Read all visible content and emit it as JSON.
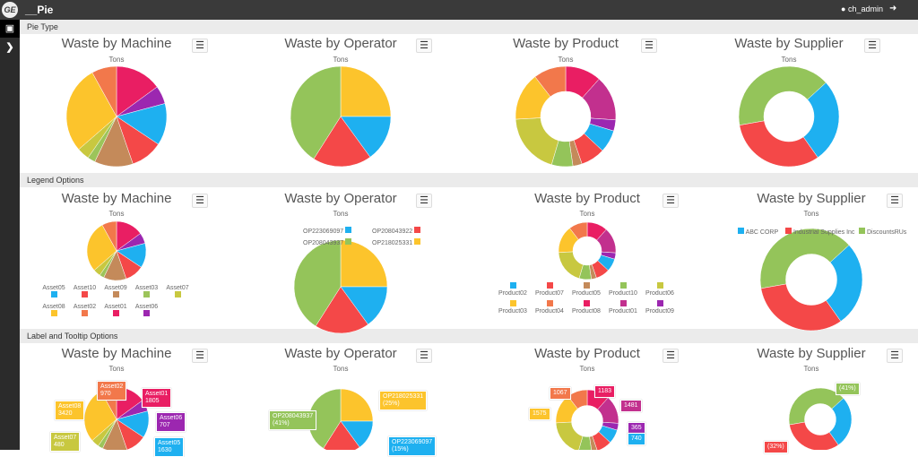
{
  "header": {
    "logo": "GE",
    "app_title": "__Pie",
    "user": "ch_admin"
  },
  "sections": [
    "Pie Type",
    "Legend Options",
    "Label and Tooltip Options"
  ],
  "titles": [
    "Waste by Machine",
    "Waste by Operator",
    "Waste by Product",
    "Waste by Supplier"
  ],
  "subtitle": "Tons",
  "colors": {
    "header": "#3a3a3a",
    "sidebar": "#2b2b2b"
  },
  "machine": [
    {
      "name": "Asset01",
      "value": 1805,
      "color": "#e91e63"
    },
    {
      "name": "Asset06",
      "value": 707,
      "color": "#9c27b0"
    },
    {
      "name": "Asset05",
      "value": 1630,
      "color": "#1eb0f0"
    },
    {
      "name": "Asset10",
      "value": 1250,
      "color": "#f44848"
    },
    {
      "name": "Asset09",
      "value": 1500,
      "color": "#c48a5a"
    },
    {
      "name": "Asset03",
      "value": 300,
      "color": "#9cc45a"
    },
    {
      "name": "Asset07",
      "value": 480,
      "color": "#c8c840"
    },
    {
      "name": "Asset08",
      "value": 3420,
      "color": "#fcc42c"
    },
    {
      "name": "Asset02",
      "value": 970,
      "color": "#f2784b"
    }
  ],
  "machine_legend_order": [
    "Asset05",
    "Asset10",
    "Asset09",
    "Asset03",
    "Asset07",
    "Asset08",
    "Asset02",
    "Asset01",
    "Asset06"
  ],
  "operator": [
    {
      "name": "OP218025331",
      "value": 25,
      "color": "#fcc42c"
    },
    {
      "name": "OP223069097",
      "value": 15,
      "color": "#1eb0f0"
    },
    {
      "name": "OP208043922",
      "value": 19,
      "color": "#f44848"
    },
    {
      "name": "OP208043937",
      "value": 41,
      "color": "#94c45a"
    }
  ],
  "operator_legend_order": [
    "OP223069097",
    "OP208043922",
    "OP208043937",
    "OP218025331"
  ],
  "product": [
    {
      "name": "Product08",
      "value": 1183,
      "color": "#e91e63"
    },
    {
      "name": "Product01",
      "value": 1481,
      "color": "#c2308e"
    },
    {
      "name": "Product09",
      "value": 365,
      "color": "#9c27b0"
    },
    {
      "name": "Product02",
      "value": 740,
      "color": "#1eb0f0"
    },
    {
      "name": "Product07",
      "value": 800,
      "color": "#f44848"
    },
    {
      "name": "Product05",
      "value": 300,
      "color": "#c48a5a"
    },
    {
      "name": "Product10",
      "value": 700,
      "color": "#94c45a"
    },
    {
      "name": "Product06",
      "value": 2000,
      "color": "#c8c840"
    },
    {
      "name": "Product03",
      "value": 1575,
      "color": "#fcc42c"
    },
    {
      "name": "Product04",
      "value": 1067,
      "color": "#f2784b"
    }
  ],
  "product_legend_order": [
    "Product02",
    "Product07",
    "Product05",
    "Product10",
    "Product06",
    "Product03",
    "Product04",
    "Product08",
    "Product01",
    "Product09"
  ],
  "supplier": [
    {
      "name": "DiscountsRUs",
      "value": 41,
      "color": "#94c45a"
    },
    {
      "name": "ABC CORP",
      "value": 27,
      "color": "#1eb0f0"
    },
    {
      "name": "Industrial Supplies Inc",
      "value": 32,
      "color": "#f44848"
    }
  ],
  "supplier_legend_order": [
    "ABC CORP",
    "Industrial Supplies Inc",
    "DiscountsRUs"
  ],
  "labels": {
    "machine": [
      "Asset02\n970",
      "Asset01\n1805",
      "Asset08\n3420",
      "Asset06\n707",
      "Asset07\n480",
      "Asset05\n1630"
    ],
    "operator": [
      "OP218025331\n(25%)",
      "OP208043937\n(41%)",
      "OP223069097\n(15%)"
    ],
    "product": [
      "1067",
      "1183",
      "1575",
      "1481",
      "365",
      "740"
    ],
    "supplier": [
      "(41%)",
      "(32%)"
    ]
  }
}
